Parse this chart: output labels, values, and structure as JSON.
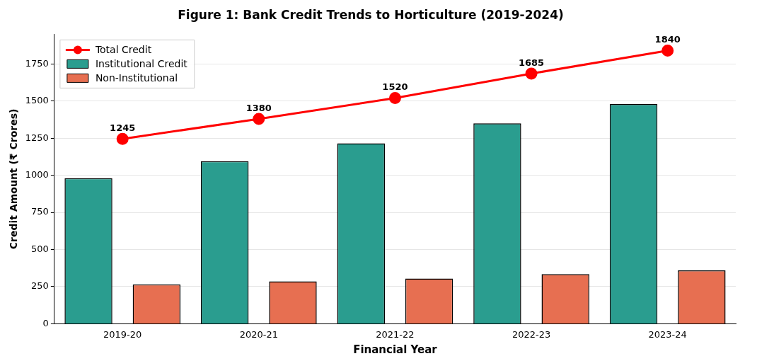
{
  "chart_data": {
    "type": "bar",
    "title": "Figure 1: Bank Credit Trends to Horticulture (2019-2024)",
    "xlabel": "Financial Year",
    "ylabel": "Credit Amount (₹ Crores)",
    "categories": [
      "2019-20",
      "2020-21",
      "2021-22",
      "2022-23",
      "2023-24"
    ],
    "series": [
      {
        "name": "Total Credit",
        "type": "line",
        "color": "#ff0000",
        "values": [
          1245,
          1380,
          1520,
          1685,
          1840
        ],
        "value_labels": [
          "1245",
          "1380",
          "1520",
          "1685",
          "1840"
        ]
      },
      {
        "name": "Institutional Credit",
        "color": "#2a9d8f",
        "values": [
          980,
          1095,
          1215,
          1350,
          1480
        ]
      },
      {
        "name": "Non-Institutional",
        "color": "#e76f51",
        "values": [
          265,
          285,
          305,
          335,
          360
        ]
      }
    ],
    "ylim": [
      0,
      1950
    ],
    "yticks": [
      0,
      250,
      500,
      750,
      1000,
      1250,
      1500,
      1750
    ],
    "grid": "y",
    "legend": "top left",
    "marker": "circle",
    "line_style": "solid"
  }
}
